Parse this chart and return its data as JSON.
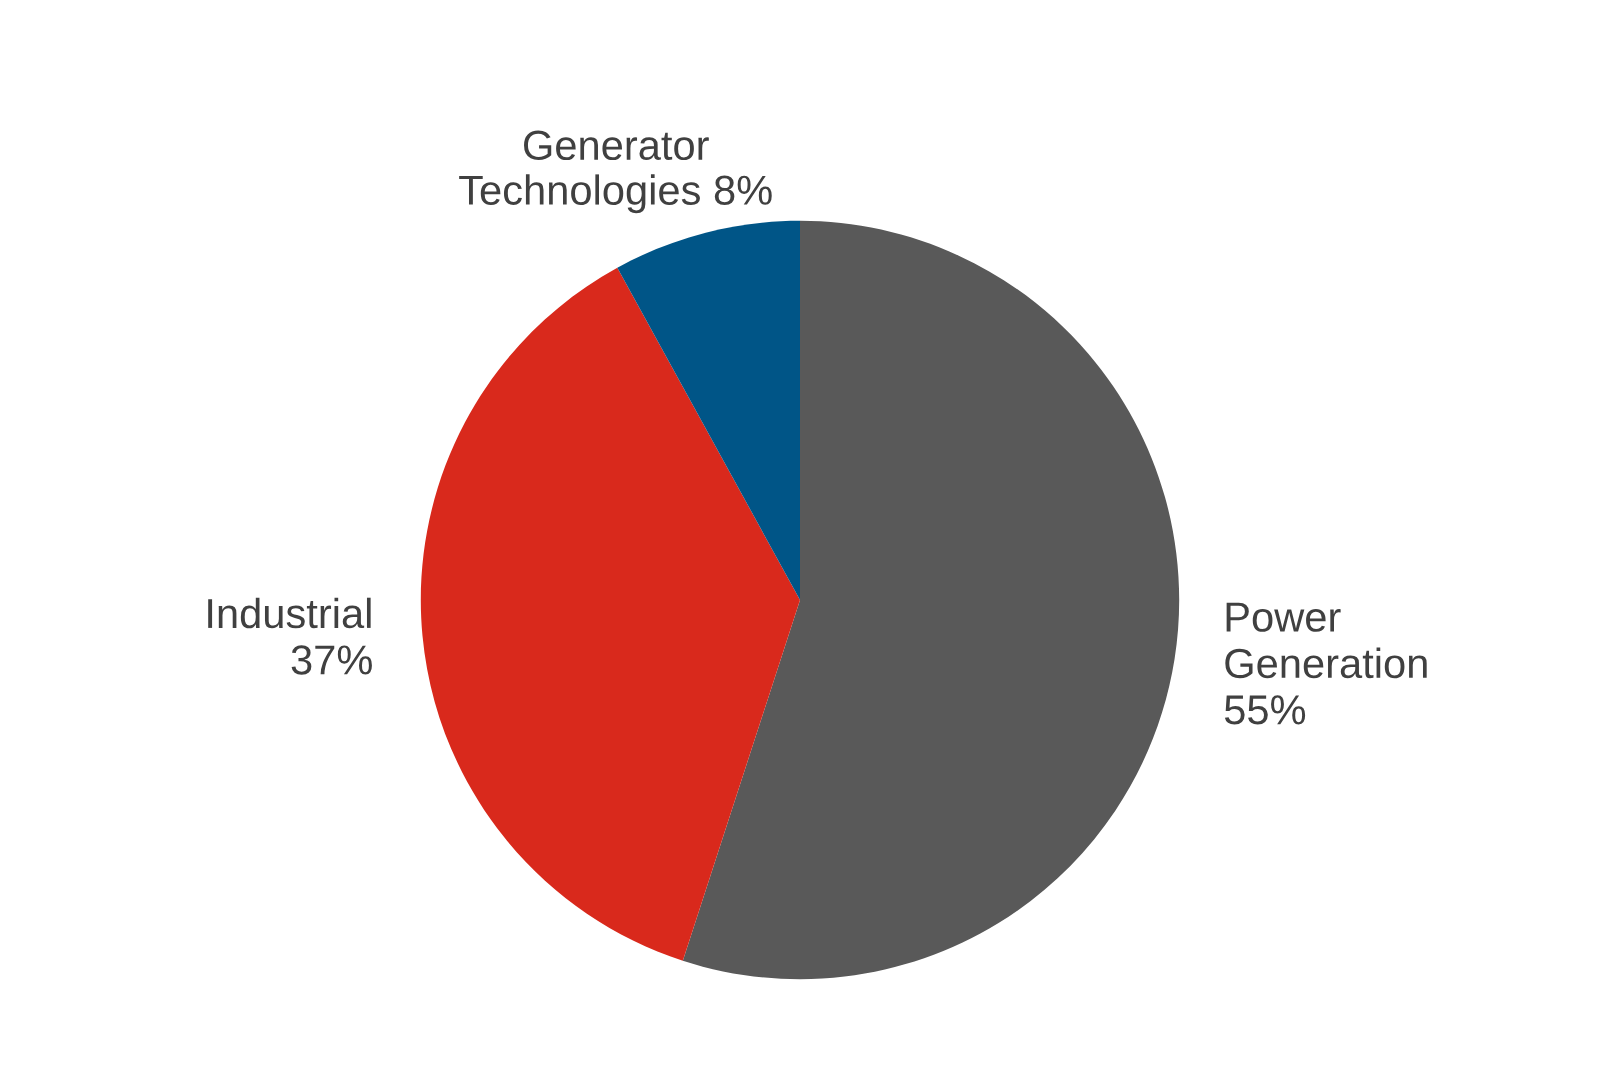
{
  "chart_data": {
    "type": "pie",
    "categories": [
      "Power\nGeneration",
      "Industrial",
      "Generator\nTechnologies"
    ],
    "values": [
      55,
      37,
      8
    ],
    "colors": [
      "#595959",
      "#d9291c",
      "#005587"
    ],
    "value_labels": [
      "55%",
      "37%",
      "8%"
    ]
  }
}
